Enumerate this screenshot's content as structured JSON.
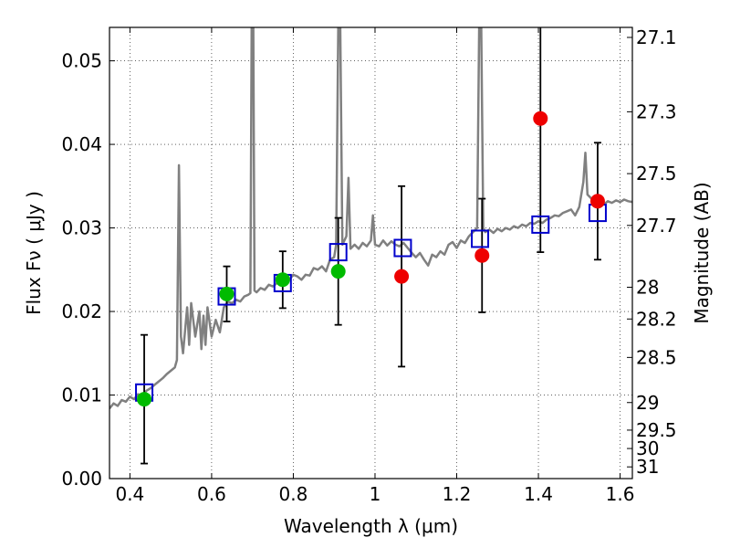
{
  "chart_data": {
    "type": "scatter",
    "xlabel": "Wavelength  λ (μm)",
    "ylabel": "Flux  Fν  ( μJy )",
    "ylabel_right": "Magnitude (AB)",
    "xlim": [
      0.35,
      1.63
    ],
    "ylim": [
      0.0,
      0.054
    ],
    "grid": true,
    "x_ticks": [
      0.4,
      0.6,
      0.8,
      1.0,
      1.2,
      1.4,
      1.6
    ],
    "x_tick_labels": [
      "0.4",
      "0.6",
      "0.8",
      "1",
      "1.2",
      "1.4",
      "1.6"
    ],
    "y_ticks": [
      0.0,
      0.01,
      0.02,
      0.03,
      0.04,
      0.05
    ],
    "y_tick_labels": [
      "0.00",
      "0.01",
      "0.02",
      "0.03",
      "0.04",
      "0.05"
    ],
    "right_ticks": [
      {
        "label": "27.1",
        "flux": 0.0528
      },
      {
        "label": "27.3",
        "flux": 0.0439
      },
      {
        "label": "27.5",
        "flux": 0.0365
      },
      {
        "label": "27.7",
        "flux": 0.0303
      },
      {
        "label": "28",
        "flux": 0.0229
      },
      {
        "label": "28.2",
        "flux": 0.0191
      },
      {
        "label": "28.5",
        "flux": 0.0145
      },
      {
        "label": "29",
        "flux": 0.0091
      },
      {
        "label": "29.5",
        "flux": 0.0058
      },
      {
        "label": "30",
        "flux": 0.0036
      },
      {
        "label": "31",
        "flux": 0.0014
      }
    ],
    "colors": {
      "model": "#808080",
      "green_points": "#00bb00",
      "red_points": "#ee0000",
      "model_squares": "#0000cc",
      "errorbars": "#000000"
    },
    "series": [
      {
        "kind": "line",
        "points": [
          [
            0.35,
            0.0084
          ],
          [
            0.36,
            0.009
          ],
          [
            0.37,
            0.0087
          ],
          [
            0.38,
            0.0094
          ],
          [
            0.39,
            0.0092
          ],
          [
            0.4,
            0.0098
          ],
          [
            0.41,
            0.0095
          ],
          [
            0.42,
            0.0101
          ],
          [
            0.43,
            0.0099
          ],
          [
            0.44,
            0.0105
          ],
          [
            0.45,
            0.0108
          ],
          [
            0.46,
            0.0112
          ],
          [
            0.47,
            0.0116
          ],
          [
            0.48,
            0.012
          ],
          [
            0.49,
            0.0125
          ],
          [
            0.5,
            0.0129
          ],
          [
            0.51,
            0.0133
          ],
          [
            0.515,
            0.0142
          ],
          [
            0.52,
            0.0375
          ],
          [
            0.525,
            0.017
          ],
          [
            0.53,
            0.015
          ],
          [
            0.54,
            0.0205
          ],
          [
            0.545,
            0.016
          ],
          [
            0.55,
            0.021
          ],
          [
            0.56,
            0.017
          ],
          [
            0.57,
            0.02
          ],
          [
            0.575,
            0.0155
          ],
          [
            0.58,
            0.0195
          ],
          [
            0.585,
            0.016
          ],
          [
            0.59,
            0.0205
          ],
          [
            0.6,
            0.017
          ],
          [
            0.61,
            0.019
          ],
          [
            0.62,
            0.0175
          ],
          [
            0.63,
            0.0205
          ],
          [
            0.64,
            0.0212
          ],
          [
            0.65,
            0.021
          ],
          [
            0.66,
            0.0214
          ],
          [
            0.67,
            0.0212
          ],
          [
            0.68,
            0.0218
          ],
          [
            0.69,
            0.022
          ],
          [
            0.695,
            0.0222
          ],
          [
            0.698,
            0.054
          ],
          [
            0.702,
            0.054
          ],
          [
            0.705,
            0.0225
          ],
          [
            0.71,
            0.0223
          ],
          [
            0.72,
            0.0228
          ],
          [
            0.73,
            0.0226
          ],
          [
            0.74,
            0.0232
          ],
          [
            0.75,
            0.023
          ],
          [
            0.76,
            0.0234
          ],
          [
            0.77,
            0.0236
          ],
          [
            0.78,
            0.024
          ],
          [
            0.79,
            0.0238
          ],
          [
            0.8,
            0.0244
          ],
          [
            0.81,
            0.0242
          ],
          [
            0.82,
            0.0238
          ],
          [
            0.83,
            0.0244
          ],
          [
            0.84,
            0.0243
          ],
          [
            0.85,
            0.0252
          ],
          [
            0.86,
            0.025
          ],
          [
            0.87,
            0.0254
          ],
          [
            0.88,
            0.0248
          ],
          [
            0.89,
            0.0262
          ],
          [
            0.9,
            0.0265
          ],
          [
            0.905,
            0.028
          ],
          [
            0.91,
            0.054
          ],
          [
            0.915,
            0.054
          ],
          [
            0.92,
            0.028
          ],
          [
            0.93,
            0.029
          ],
          [
            0.935,
            0.036
          ],
          [
            0.94,
            0.0275
          ],
          [
            0.95,
            0.028
          ],
          [
            0.96,
            0.0275
          ],
          [
            0.97,
            0.0282
          ],
          [
            0.98,
            0.0278
          ],
          [
            0.99,
            0.0285
          ],
          [
            0.995,
            0.0315
          ],
          [
            1.0,
            0.028
          ],
          [
            1.01,
            0.0278
          ],
          [
            1.02,
            0.0285
          ],
          [
            1.03,
            0.0279
          ],
          [
            1.04,
            0.0284
          ],
          [
            1.05,
            0.028
          ],
          [
            1.06,
            0.0278
          ],
          [
            1.07,
            0.0282
          ],
          [
            1.08,
            0.0276
          ],
          [
            1.09,
            0.027
          ],
          [
            1.1,
            0.0265
          ],
          [
            1.11,
            0.027
          ],
          [
            1.12,
            0.0262
          ],
          [
            1.13,
            0.0255
          ],
          [
            1.14,
            0.0268
          ],
          [
            1.15,
            0.0265
          ],
          [
            1.16,
            0.0272
          ],
          [
            1.17,
            0.0268
          ],
          [
            1.18,
            0.028
          ],
          [
            1.19,
            0.0283
          ],
          [
            1.2,
            0.0276
          ],
          [
            1.21,
            0.0285
          ],
          [
            1.22,
            0.0282
          ],
          [
            1.23,
            0.029
          ],
          [
            1.24,
            0.0295
          ],
          [
            1.25,
            0.03
          ],
          [
            1.255,
            0.054
          ],
          [
            1.26,
            0.054
          ],
          [
            1.265,
            0.03
          ],
          [
            1.27,
            0.0295
          ],
          [
            1.28,
            0.0298
          ],
          [
            1.29,
            0.0294
          ],
          [
            1.3,
            0.0299
          ],
          [
            1.31,
            0.0296
          ],
          [
            1.32,
            0.03
          ],
          [
            1.33,
            0.0298
          ],
          [
            1.34,
            0.0302
          ],
          [
            1.35,
            0.03
          ],
          [
            1.36,
            0.0304
          ],
          [
            1.37,
            0.0302
          ],
          [
            1.38,
            0.0306
          ],
          [
            1.39,
            0.0305
          ],
          [
            1.4,
            0.0308
          ],
          [
            1.41,
            0.0306
          ],
          [
            1.42,
            0.031
          ],
          [
            1.43,
            0.0312
          ],
          [
            1.44,
            0.0315
          ],
          [
            1.45,
            0.0314
          ],
          [
            1.46,
            0.0318
          ],
          [
            1.47,
            0.032
          ],
          [
            1.48,
            0.0322
          ],
          [
            1.49,
            0.0315
          ],
          [
            1.5,
            0.0325
          ],
          [
            1.51,
            0.0355
          ],
          [
            1.515,
            0.039
          ],
          [
            1.52,
            0.034
          ],
          [
            1.53,
            0.0335
          ],
          [
            1.54,
            0.0332
          ],
          [
            1.55,
            0.033
          ],
          [
            1.56,
            0.0328
          ],
          [
            1.57,
            0.0332
          ],
          [
            1.58,
            0.033
          ],
          [
            1.59,
            0.0333
          ],
          [
            1.6,
            0.0331
          ],
          [
            1.61,
            0.0334
          ],
          [
            1.62,
            0.0332
          ],
          [
            1.63,
            0.0331
          ]
        ]
      },
      {
        "kind": "squares",
        "points": [
          [
            0.435,
            0.0103
          ],
          [
            0.637,
            0.0218
          ],
          [
            0.774,
            0.0234
          ],
          [
            0.91,
            0.0271
          ],
          [
            1.068,
            0.0276
          ],
          [
            1.257,
            0.0287
          ],
          [
            1.405,
            0.0304
          ],
          [
            1.545,
            0.0318
          ]
        ]
      },
      {
        "kind": "green",
        "points": [
          [
            0.435,
            0.0095,
            0.0077
          ],
          [
            0.637,
            0.0221,
            0.0033
          ],
          [
            0.774,
            0.0238,
            0.0034
          ],
          [
            0.91,
            0.0248,
            0.0064
          ]
        ]
      },
      {
        "kind": "red",
        "points": [
          [
            1.065,
            0.0242,
            0.0108
          ],
          [
            1.262,
            0.0267,
            0.0068
          ],
          [
            1.405,
            0.0431,
            0.016
          ],
          [
            1.545,
            0.0332,
            0.007
          ]
        ]
      }
    ]
  }
}
